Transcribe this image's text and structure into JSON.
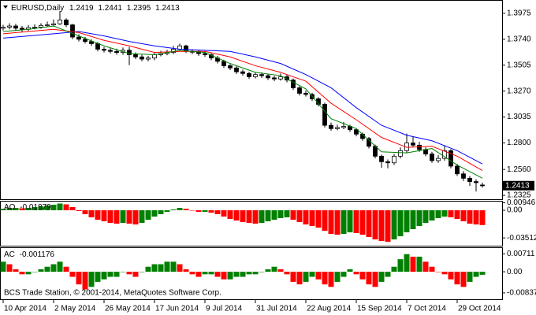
{
  "chart_data": [
    {
      "type": "candlestick",
      "title": "EURUSD,Daily",
      "categories": [
        "10 Apr 2014",
        null,
        null,
        null,
        null,
        null,
        null,
        null,
        "2 May 2014",
        null,
        null,
        null,
        null,
        null,
        null,
        null,
        "26 May 2014",
        null,
        null,
        null,
        null,
        null,
        null,
        null,
        "17 Jun 2014",
        null,
        null,
        null,
        null,
        null,
        null,
        null,
        "9 Jul 2014",
        null,
        null,
        null,
        null,
        null,
        null,
        null,
        "31 Jul 2014",
        null,
        null,
        null,
        null,
        null,
        null,
        null,
        "22 Aug 2014",
        null,
        null,
        null,
        null,
        null,
        null,
        null,
        "15 Sep 2014",
        null,
        null,
        null,
        null,
        null,
        null,
        null,
        "7 Oct 2014",
        null,
        null,
        null,
        null,
        null,
        null,
        null,
        "29 Oct 2014",
        null,
        null,
        null,
        null
      ],
      "open": [
        1.384,
        1.385,
        1.386,
        1.384,
        1.383,
        1.3845,
        1.385,
        1.3865,
        1.387,
        1.388,
        1.3915,
        1.387,
        1.376,
        1.374,
        1.372,
        1.37,
        1.365,
        1.364,
        1.363,
        1.362,
        1.364,
        1.36,
        1.358,
        1.356,
        1.357,
        1.36,
        1.361,
        1.362,
        1.365,
        1.368,
        1.363,
        1.3625,
        1.361,
        1.36,
        1.357,
        1.354,
        1.35,
        1.348,
        1.3445,
        1.343,
        1.34,
        1.342,
        1.341,
        1.339,
        1.338,
        1.34,
        1.337,
        1.33,
        1.325,
        1.324,
        1.32,
        1.315,
        1.296,
        1.293,
        1.294,
        1.295,
        1.292,
        1.288,
        1.284,
        1.277,
        1.268,
        1.263,
        1.262,
        1.268,
        1.273,
        1.28,
        1.278,
        1.274,
        1.27,
        1.264,
        1.266,
        1.273,
        1.259,
        1.252,
        1.248,
        1.245,
        1.2419
      ],
      "high": [
        1.387,
        1.3885,
        1.388,
        1.386,
        1.387,
        1.3875,
        1.3885,
        1.39,
        1.392,
        1.3995,
        1.393,
        1.388,
        1.3785,
        1.376,
        1.374,
        1.3715,
        1.367,
        1.366,
        1.3655,
        1.3665,
        1.367,
        1.362,
        1.36,
        1.359,
        1.362,
        1.3635,
        1.3645,
        1.368,
        1.37,
        1.369,
        1.365,
        1.364,
        1.363,
        1.3615,
        1.359,
        1.3555,
        1.3515,
        1.3495,
        1.3465,
        1.3445,
        1.344,
        1.344,
        1.3425,
        1.341,
        1.343,
        1.342,
        1.3385,
        1.3315,
        1.3275,
        1.3255,
        1.3215,
        1.3165,
        1.2985,
        1.2965,
        1.299,
        1.2965,
        1.2935,
        1.2895,
        1.2855,
        1.2785,
        1.2695,
        1.265,
        1.27,
        1.276,
        1.2885,
        1.286,
        1.281,
        1.276,
        1.272,
        1.269,
        1.278,
        1.2745,
        1.261,
        1.2545,
        1.25,
        1.247,
        1.2441
      ],
      "low": [
        1.382,
        1.383,
        1.382,
        1.3805,
        1.3815,
        1.383,
        1.3835,
        1.385,
        1.3855,
        1.387,
        1.385,
        1.374,
        1.372,
        1.37,
        1.368,
        1.363,
        1.362,
        1.361,
        1.36,
        1.36,
        1.3505,
        1.356,
        1.354,
        1.354,
        1.355,
        1.3585,
        1.3595,
        1.3605,
        1.3635,
        1.3615,
        1.3605,
        1.359,
        1.358,
        1.355,
        1.352,
        1.348,
        1.346,
        1.3425,
        1.341,
        1.338,
        1.3385,
        1.339,
        1.337,
        1.336,
        1.3365,
        1.335,
        1.328,
        1.323,
        1.322,
        1.318,
        1.313,
        1.294,
        1.291,
        1.2915,
        1.2925,
        1.29,
        1.286,
        1.282,
        1.275,
        1.266,
        1.2575,
        1.257,
        1.26,
        1.266,
        1.271,
        1.276,
        1.272,
        1.268,
        1.262,
        1.262,
        1.264,
        1.257,
        1.25,
        1.2455,
        1.241,
        1.236,
        1.2395
      ],
      "close": [
        1.385,
        1.386,
        1.384,
        1.383,
        1.3845,
        1.385,
        1.3865,
        1.387,
        1.388,
        1.3915,
        1.387,
        1.376,
        1.374,
        1.372,
        1.37,
        1.365,
        1.364,
        1.363,
        1.362,
        1.364,
        1.36,
        1.358,
        1.356,
        1.357,
        1.36,
        1.361,
        1.362,
        1.365,
        1.368,
        1.363,
        1.3625,
        1.361,
        1.36,
        1.357,
        1.354,
        1.35,
        1.348,
        1.3445,
        1.343,
        1.34,
        1.342,
        1.341,
        1.339,
        1.338,
        1.34,
        1.337,
        1.33,
        1.325,
        1.324,
        1.32,
        1.315,
        1.296,
        1.293,
        1.294,
        1.295,
        1.292,
        1.288,
        1.284,
        1.277,
        1.268,
        1.263,
        1.262,
        1.268,
        1.273,
        1.28,
        1.278,
        1.274,
        1.27,
        1.264,
        1.266,
        1.273,
        1.259,
        1.252,
        1.248,
        1.245,
        1.244,
        1.2413
      ],
      "up_color": "#ffffff",
      "down_color": "#000000",
      "series": [
        {
          "color": "#0000ff",
          "x": [
            0,
            4,
            8,
            12,
            16,
            20,
            24,
            28,
            32,
            36,
            40,
            44,
            48,
            52,
            56,
            60,
            64,
            68,
            72,
            76
          ],
          "values": [
            1.375,
            1.377,
            1.379,
            1.381,
            1.377,
            1.372,
            1.368,
            1.365,
            1.364,
            1.363,
            1.358,
            1.352,
            1.342,
            1.33,
            1.312,
            1.296,
            1.287,
            1.282,
            1.273,
            1.261
          ]
        },
        {
          "color": "#ff0000",
          "x": [
            0,
            4,
            8,
            12,
            16,
            20,
            24,
            28,
            32,
            36,
            40,
            44,
            48,
            52,
            56,
            60,
            64,
            68,
            72,
            76
          ],
          "values": [
            1.379,
            1.381,
            1.383,
            1.38,
            1.373,
            1.368,
            1.362,
            1.363,
            1.363,
            1.358,
            1.35,
            1.344,
            1.336,
            1.316,
            1.301,
            1.285,
            1.276,
            1.277,
            1.268,
            1.255
          ]
        },
        {
          "color": "#008000",
          "x": [
            0,
            4,
            8,
            12,
            16,
            20,
            24,
            28,
            32,
            36,
            40,
            44,
            48,
            52,
            56,
            60,
            64,
            68,
            72,
            76
          ],
          "values": [
            1.381,
            1.383,
            1.386,
            1.377,
            1.368,
            1.361,
            1.36,
            1.364,
            1.362,
            1.352,
            1.344,
            1.341,
            1.329,
            1.302,
            1.293,
            1.272,
            1.271,
            1.275,
            1.26,
            1.248
          ]
        }
      ],
      "ylim": [
        1.2297,
        1.406
      ],
      "yticks": [
        {
          "value": 1.3975,
          "label": "1.3975"
        },
        {
          "value": 1.374,
          "label": "1.3740"
        },
        {
          "value": 1.3505,
          "label": "1.3505"
        },
        {
          "value": 1.327,
          "label": "1.3270"
        },
        {
          "value": 1.3035,
          "label": "1.3035"
        },
        {
          "value": 1.28,
          "label": "1.2800"
        },
        {
          "value": 1.256,
          "label": "1.2560"
        },
        {
          "value": 1.2325,
          "label": "1.2325"
        }
      ]
    },
    {
      "type": "oscillator",
      "title": "AO",
      "values": [
        0.002,
        0.003,
        0.003,
        0.0025,
        0.003,
        0.004,
        0.005,
        0.006,
        0.007,
        0.0085,
        0.0075,
        0.004,
        -0.001,
        -0.005,
        -0.009,
        -0.012,
        -0.014,
        -0.016,
        -0.017,
        -0.016,
        -0.017,
        -0.018,
        -0.016,
        -0.012,
        -0.008,
        -0.005,
        -0.002,
        0.001,
        0.003,
        0.002,
        0,
        -0.002,
        -0.002,
        -0.003,
        -0.005,
        -0.008,
        -0.011,
        -0.013,
        -0.015,
        -0.016,
        -0.017,
        -0.016,
        -0.014,
        -0.012,
        -0.01,
        -0.009,
        -0.012,
        -0.015,
        -0.018,
        -0.02,
        -0.022,
        -0.026,
        -0.03,
        -0.031,
        -0.03,
        -0.028,
        -0.029,
        -0.031,
        -0.034,
        -0.037,
        -0.039,
        -0.04,
        -0.037,
        -0.033,
        -0.028,
        -0.024,
        -0.02,
        -0.016,
        -0.013,
        -0.01,
        -0.008,
        -0.009,
        -0.011,
        -0.014,
        -0.017,
        -0.018,
        -0.01879
      ],
      "up_color": "#008000",
      "down_color": "#ff0000",
      "ylim": [
        -0.045,
        0.011
      ],
      "yticks": [
        0.00946,
        {
          "value": 0,
          "label": "0.00"
        },
        -0.03512
      ]
    },
    {
      "type": "oscillator",
      "title": "AC",
      "values": [
        0.004,
        0.003,
        0.001,
        -0.001,
        -0.001,
        0,
        0.001,
        0.002,
        0.003,
        0.004,
        0.002,
        -0.002,
        -0.005,
        -0.007,
        -0.006,
        -0.004,
        -0.003,
        -0.002,
        -0.002,
        0,
        -0.001,
        -0.002,
        0,
        0.002,
        0.003,
        0.003,
        0.004,
        0.004,
        0.003,
        0.001,
        -0.001,
        -0.002,
        -0.001,
        -0.001,
        -0.002,
        -0.003,
        -0.003,
        -0.002,
        -0.002,
        -0.001,
        -0.001,
        0,
        0.001,
        0.002,
        0.001,
        -0.001,
        -0.004,
        -0.005,
        -0.004,
        -0.002,
        -0.003,
        -0.005,
        -0.006,
        -0.004,
        -0.002,
        0.001,
        -0.001,
        -0.003,
        -0.005,
        -0.006,
        -0.004,
        -0.002,
        0.002,
        0.005,
        0.007,
        0.006,
        0.006,
        0.004,
        0.002,
        0,
        -0.001,
        -0.003,
        -0.005,
        -0.006,
        -0.004,
        -0.002,
        -0.001176
      ],
      "up_color": "#008000",
      "down_color": "#ff0000",
      "ylim": [
        -0.0109,
        0.0091
      ],
      "yticks": [
        0.00711,
        {
          "value": 0,
          "label": "0.00"
        },
        -0.00837
      ],
      "annotation": "BCS Trade Station, © 2001-2014, MetaQuotes Software Corp."
    }
  ]
}
